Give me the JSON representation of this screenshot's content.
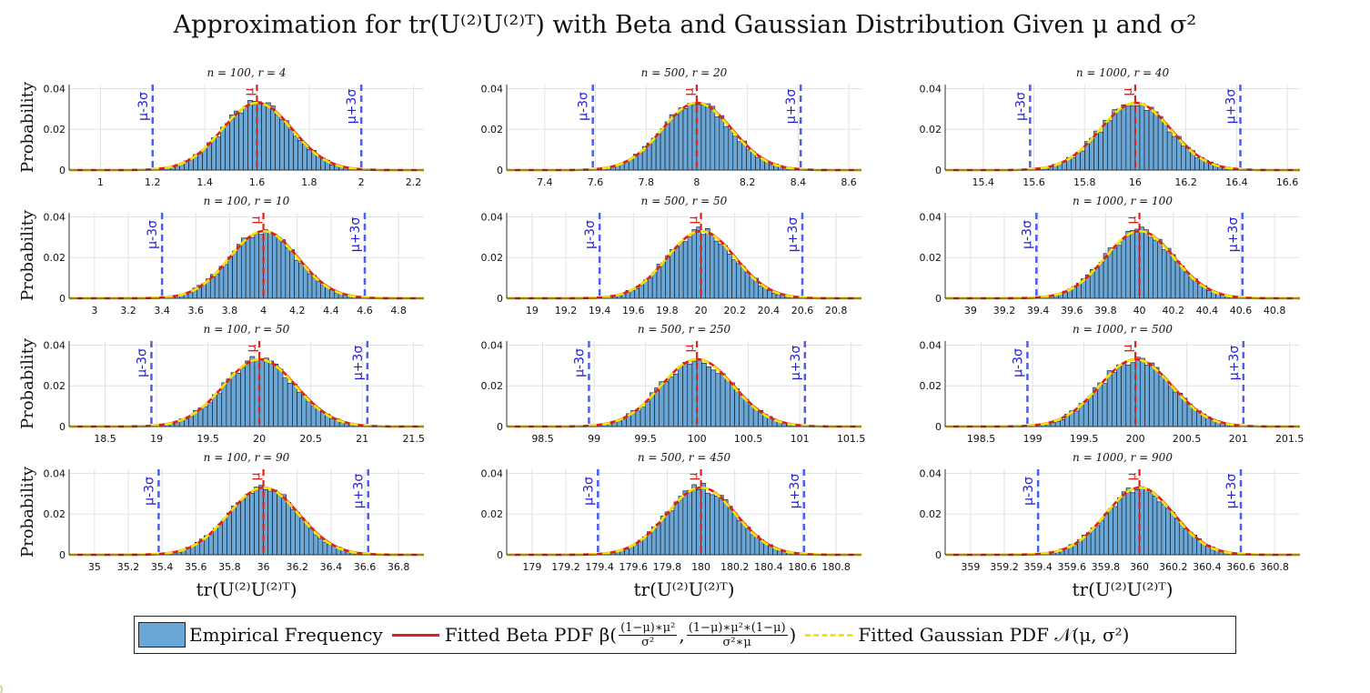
{
  "title": "Approximation for tr(U⁽²⁾U⁽²⁾ᵀ) with Beta and Gaussian Distribution Given μ and σ²",
  "ylabel": "Probability",
  "xlabel": "tr(U⁽²⁾U⁽²⁾ᵀ)",
  "legend": {
    "empirical": "Empirical Frequency",
    "beta_prefix": "Fitted Beta PDF β(",
    "beta_num1": "(1−μ)∗μ²",
    "beta_den1": "σ²",
    "beta_num2": "(1−μ)∗μ²∗(1−μ)",
    "beta_den2": "σ²∗μ",
    "beta_suffix": ")",
    "gaussian": "Fitted Gaussian PDF 𝒩(μ, σ²)"
  },
  "colors": {
    "bar": "#6ba7d6",
    "beta": "#e0201b",
    "gaussian": "#f5e600",
    "sigma_line": "#4a5ef0",
    "mu_line": "#e0201b",
    "grid": "#e2e2e2"
  },
  "chart_data": [
    {
      "type": "bar",
      "title": "n = 100,  r = 4",
      "mu": 1.6,
      "sigma": 0.1333,
      "xlim": [
        0.88,
        2.24
      ],
      "xticks": [
        1,
        1.2,
        1.4,
        1.6,
        1.8,
        2,
        2.2
      ],
      "ylim": [
        0,
        0.042
      ],
      "yticks": [
        0,
        0.02,
        0.04
      ],
      "peak": 0.033,
      "minus_label": "μ-3σ",
      "plus_label": "μ+3σ",
      "mu_label": "μ",
      "ylabel": "Probability",
      "xlabel": ""
    },
    {
      "type": "bar",
      "title": "n = 500,  r = 20",
      "mu": 8,
      "sigma": 0.1367,
      "xlim": [
        7.25,
        8.65
      ],
      "xticks": [
        7.4,
        7.6,
        7.8,
        8,
        8.2,
        8.4,
        8.6
      ],
      "ylim": [
        0,
        0.042
      ],
      "yticks": [
        0,
        0.02,
        0.04
      ],
      "peak": 0.033,
      "minus_label": "μ-3σ",
      "plus_label": "μ+3σ",
      "mu_label": "μ",
      "ylabel": "",
      "xlabel": ""
    },
    {
      "type": "bar",
      "title": "n = 1000,  r = 40",
      "mu": 16,
      "sigma": 0.1383,
      "xlim": [
        15.25,
        16.65
      ],
      "xticks": [
        15.4,
        15.6,
        15.8,
        16,
        16.2,
        16.4,
        16.6
      ],
      "ylim": [
        0,
        0.042
      ],
      "yticks": [
        0,
        0.02,
        0.04
      ],
      "peak": 0.033,
      "minus_label": "μ-3σ",
      "plus_label": "μ+3σ",
      "mu_label": "μ",
      "ylabel": "",
      "xlabel": ""
    },
    {
      "type": "bar",
      "title": "n = 100,  r = 10",
      "mu": 4,
      "sigma": 0.2,
      "xlim": [
        2.85,
        4.95
      ],
      "xticks": [
        3,
        3.2,
        3.4,
        3.6,
        3.8,
        4,
        4.2,
        4.4,
        4.6,
        4.8
      ],
      "ylim": [
        0,
        0.042
      ],
      "yticks": [
        0,
        0.02,
        0.04
      ],
      "peak": 0.033,
      "minus_label": "μ-3σ",
      "plus_label": "μ+3σ",
      "mu_label": "μ",
      "ylabel": "Probability",
      "xlabel": ""
    },
    {
      "type": "bar",
      "title": "n = 500,  r = 50",
      "mu": 20,
      "sigma": 0.2,
      "xlim": [
        18.85,
        20.95
      ],
      "xticks": [
        19,
        19.2,
        19.4,
        19.6,
        19.8,
        20,
        20.2,
        20.4,
        20.6,
        20.8
      ],
      "ylim": [
        0,
        0.042
      ],
      "yticks": [
        0,
        0.02,
        0.04
      ],
      "peak": 0.033,
      "minus_label": "μ-3σ",
      "plus_label": "μ+3σ",
      "mu_label": "μ",
      "ylabel": "",
      "xlabel": ""
    },
    {
      "type": "bar",
      "title": "n = 1000,  r = 100",
      "mu": 40,
      "sigma": 0.2033,
      "xlim": [
        38.85,
        40.95
      ],
      "xticks": [
        39,
        39.2,
        39.4,
        39.6,
        39.8,
        40,
        40.2,
        40.4,
        40.6,
        40.8
      ],
      "ylim": [
        0,
        0.042
      ],
      "yticks": [
        0,
        0.02,
        0.04
      ],
      "peak": 0.033,
      "minus_label": "μ-3σ",
      "plus_label": "μ+3σ",
      "mu_label": "μ",
      "ylabel": "",
      "xlabel": ""
    },
    {
      "type": "bar",
      "title": "n = 100,  r = 50",
      "mu": 20,
      "sigma": 0.35,
      "xlim": [
        18.15,
        21.6
      ],
      "xticks": [
        18.5,
        19,
        19.5,
        20,
        20.5,
        21,
        21.5
      ],
      "ylim": [
        0,
        0.042
      ],
      "yticks": [
        0,
        0.02,
        0.04
      ],
      "peak": 0.033,
      "minus_label": "μ-3σ",
      "plus_label": "μ+3σ",
      "mu_label": "μ",
      "ylabel": "Probability",
      "xlabel": ""
    },
    {
      "type": "bar",
      "title": "n = 500,  r = 250",
      "mu": 100,
      "sigma": 0.35,
      "xlim": [
        98.15,
        101.6
      ],
      "xticks": [
        98.5,
        99,
        99.5,
        100,
        100.5,
        101,
        101.5
      ],
      "ylim": [
        0,
        0.042
      ],
      "yticks": [
        0,
        0.02,
        0.04
      ],
      "peak": 0.033,
      "minus_label": "μ-3σ",
      "plus_label": "μ+3σ",
      "mu_label": "μ",
      "ylabel": "",
      "xlabel": ""
    },
    {
      "type": "bar",
      "title": "n = 1000,  r = 500",
      "mu": 200,
      "sigma": 0.35,
      "xlim": [
        198.15,
        201.6
      ],
      "xticks": [
        198.5,
        199,
        199.5,
        200,
        200.5,
        201,
        201.5
      ],
      "ylim": [
        0,
        0.042
      ],
      "yticks": [
        0,
        0.02,
        0.04
      ],
      "peak": 0.033,
      "minus_label": "μ-3σ",
      "plus_label": "μ+3σ",
      "mu_label": "μ",
      "ylabel": "",
      "xlabel": ""
    },
    {
      "type": "bar",
      "title": "n = 100,  r = 90",
      "mu": 36,
      "sigma": 0.2067,
      "xlim": [
        34.85,
        36.95
      ],
      "xticks": [
        35,
        35.2,
        35.4,
        35.6,
        35.8,
        36,
        36.2,
        36.4,
        36.6,
        36.8
      ],
      "ylim": [
        0,
        0.042
      ],
      "yticks": [
        0,
        0.02,
        0.04
      ],
      "peak": 0.033,
      "minus_label": "μ-3σ",
      "plus_label": "μ+3σ",
      "mu_label": "μ",
      "ylabel": "Probability",
      "xlabel": "tr(U⁽²⁾U⁽²⁾ᵀ)"
    },
    {
      "type": "bar",
      "title": "n = 500,  r = 450",
      "mu": 180,
      "sigma": 0.2033,
      "xlim": [
        178.85,
        180.95
      ],
      "xticks": [
        179,
        179.2,
        179.4,
        179.6,
        179.8,
        180,
        180.2,
        180.4,
        180.6,
        180.8
      ],
      "ylim": [
        0,
        0.042
      ],
      "yticks": [
        0,
        0.02,
        0.04
      ],
      "peak": 0.033,
      "minus_label": "μ-3σ",
      "plus_label": "μ+3σ",
      "mu_label": "μ",
      "ylabel": "",
      "xlabel": "tr(U⁽²⁾U⁽²⁾ᵀ)"
    },
    {
      "type": "bar",
      "title": "n = 1000,  r = 900",
      "mu": 360,
      "sigma": 0.2,
      "xlim": [
        358.85,
        360.95
      ],
      "xticks": [
        359,
        359.2,
        359.4,
        359.6,
        359.8,
        360,
        360.2,
        360.4,
        360.6,
        360.8
      ],
      "ylim": [
        0,
        0.042
      ],
      "yticks": [
        0,
        0.02,
        0.04
      ],
      "peak": 0.033,
      "minus_label": "μ-3σ",
      "plus_label": "μ+3σ",
      "mu_label": "μ",
      "ylabel": "",
      "xlabel": "tr(U⁽²⁾U⁽²⁾ᵀ)"
    }
  ]
}
